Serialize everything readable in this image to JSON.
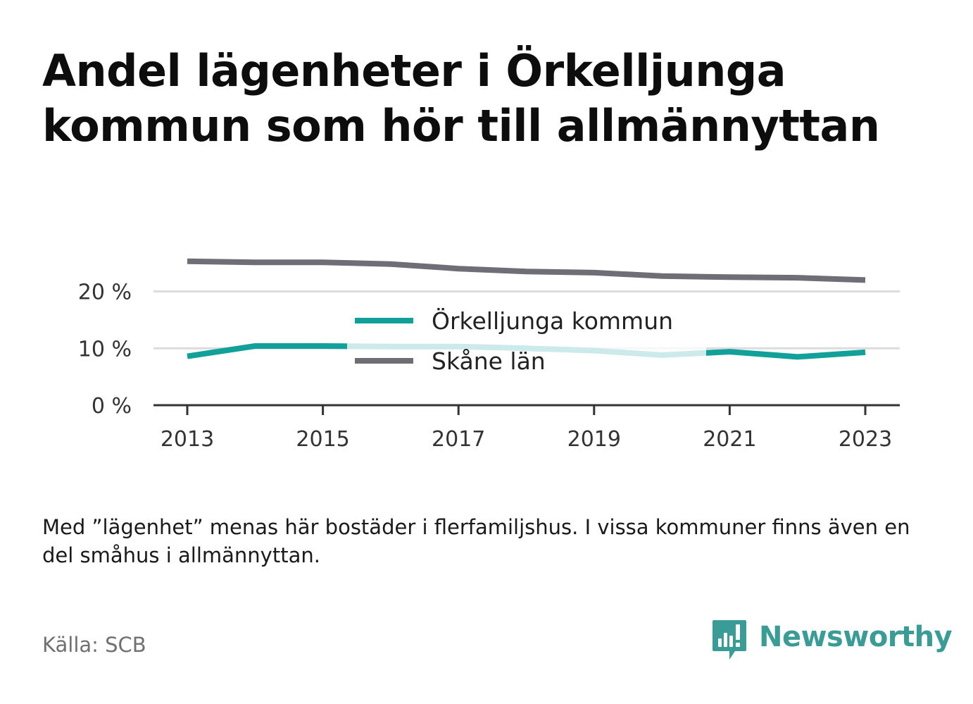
{
  "title": "Andel lägenheter i Örkelljunga kommun som hör till allmännyttan",
  "footnote": "Med ”lägenhet” menas här bostäder i flerfamiljshus. I vissa kommuner finns även en del småhus i allmännyttan.",
  "source": "Källa: SCB",
  "brand": {
    "name": "Newsworthy",
    "icon": "newsworthy-logo-icon",
    "color": "#3a9c96"
  },
  "chart_data": {
    "type": "line",
    "title": "Andel lägenheter i Örkelljunga kommun som hör till allmännyttan",
    "xlabel": "",
    "ylabel": "",
    "x": [
      2013,
      2014,
      2015,
      2016,
      2017,
      2018,
      2019,
      2020,
      2021,
      2022,
      2023
    ],
    "x_ticks": [
      "2013",
      "2015",
      "2017",
      "2019",
      "2021",
      "2023"
    ],
    "x_tick_values": [
      2013,
      2015,
      2017,
      2019,
      2021,
      2023
    ],
    "y_ticks": [
      "0 %",
      "10 %",
      "20 %"
    ],
    "y_tick_values": [
      0,
      10,
      20
    ],
    "ylim": [
      0,
      26.5
    ],
    "xlim": [
      2012.5,
      2023.5
    ],
    "grid": true,
    "legend_position": "center",
    "series": [
      {
        "name": "Örkelljunga kommun",
        "color": "#12a19a",
        "values": [
          8.6,
          10.4,
          10.4,
          10.3,
          10.3,
          10.0,
          9.6,
          8.8,
          9.4,
          8.5,
          9.3
        ]
      },
      {
        "name": "Skåne län",
        "color": "#6f6e77",
        "values": [
          25.3,
          25.1,
          25.1,
          24.8,
          24.0,
          23.5,
          23.3,
          22.7,
          22.5,
          22.4,
          22.0
        ]
      }
    ]
  }
}
